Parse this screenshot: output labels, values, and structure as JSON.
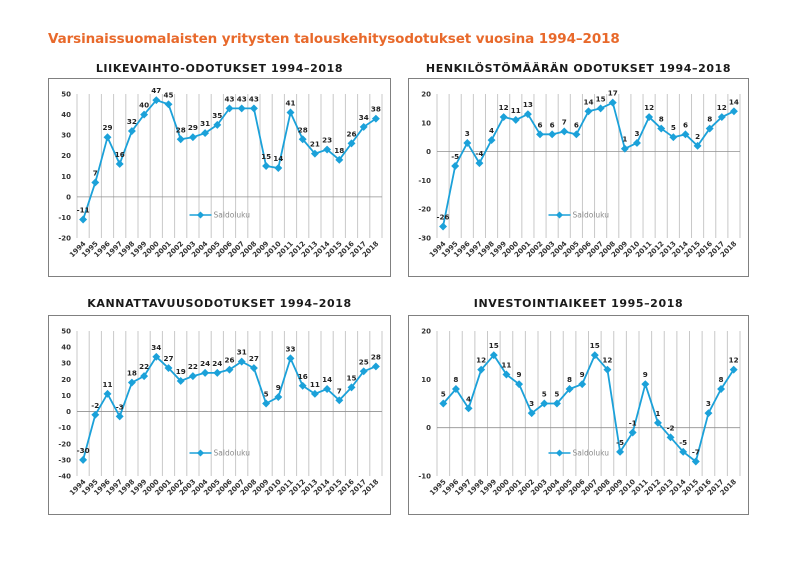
{
  "page": {
    "title": "Varsinaissuomalaisten yritysten talouskehitysodotukset vuosina 1994–2018",
    "colors": {
      "title": "#e8692b",
      "series": "#1ba1d9",
      "grid": "#c8c8c8",
      "zero_line": "#909090"
    }
  },
  "chart_data": [
    {
      "type": "line",
      "title": "LIIKEVAIHTO-ODOTUKSET 1994–2018",
      "xlabel": "",
      "ylabel": "",
      "x": [
        "1994",
        "1995",
        "1996",
        "1997",
        "1998",
        "1999",
        "2000",
        "2001",
        "2002",
        "2003",
        "2004",
        "2005",
        "2006",
        "2007",
        "2008",
        "2009",
        "2010",
        "2011",
        "2012",
        "2013",
        "2014",
        "2015",
        "2016",
        "2017",
        "2018"
      ],
      "series": [
        {
          "name": "Saldoluku",
          "values": [
            -11,
            7,
            29,
            16,
            32,
            40,
            47,
            45,
            28,
            29,
            31,
            35,
            43,
            43,
            43,
            15,
            14,
            41,
            28,
            21,
            23,
            18,
            26,
            34,
            38
          ]
        }
      ],
      "ylim": [
        -20,
        50
      ],
      "yticks": [
        -20,
        -10,
        0,
        10,
        20,
        30,
        40,
        50
      ],
      "grid": "vertical",
      "legend": "lower-center",
      "data_labels": true
    },
    {
      "type": "line",
      "title": "HENKILÖSTÖMÄÄRÄN ODOTUKSET 1994–2018",
      "xlabel": "",
      "ylabel": "",
      "x": [
        "1994",
        "1995",
        "1996",
        "1997",
        "1998",
        "1999",
        "2000",
        "2001",
        "2002",
        "2003",
        "2004",
        "2005",
        "2006",
        "2007",
        "2008",
        "2009",
        "2010",
        "2011",
        "2012",
        "2013",
        "2014",
        "2015",
        "2016",
        "2017",
        "2018"
      ],
      "series": [
        {
          "name": "Saldoluku",
          "values": [
            -26,
            -5,
            3,
            -4,
            4,
            12,
            11,
            13,
            6,
            6,
            7,
            6,
            14,
            15,
            17,
            1,
            3,
            12,
            8,
            5,
            6,
            2,
            8,
            12,
            14
          ]
        }
      ],
      "ylim": [
        -30,
        20
      ],
      "yticks": [
        -30,
        -20,
        -10,
        0,
        10,
        20
      ],
      "grid": "vertical",
      "legend": "lower-center",
      "data_labels": true
    },
    {
      "type": "line",
      "title": "KANNATTAVUUSODOTUKSET 1994–2018",
      "xlabel": "",
      "ylabel": "",
      "x": [
        "1994",
        "1995",
        "1996",
        "1997",
        "1998",
        "1999",
        "2000",
        "2001",
        "2002",
        "2003",
        "2004",
        "2005",
        "2006",
        "2007",
        "2008",
        "2009",
        "2010",
        "2011",
        "2012",
        "2013",
        "2014",
        "2015",
        "2016",
        "2017",
        "2018"
      ],
      "series": [
        {
          "name": "Saldoluku",
          "values": [
            -30,
            -2,
            11,
            -3,
            18,
            22,
            34,
            27,
            19,
            22,
            24,
            24,
            26,
            31,
            27,
            5,
            9,
            33,
            16,
            11,
            14,
            7,
            15,
            25,
            28
          ]
        }
      ],
      "ylim": [
        -40,
        50
      ],
      "yticks": [
        -40,
        -30,
        -20,
        -10,
        0,
        10,
        20,
        30,
        40,
        50
      ],
      "grid": "vertical",
      "legend": "lower-center",
      "data_labels": true
    },
    {
      "type": "line",
      "title": "INVESTOINTIAIKEET 1995–2018",
      "xlabel": "",
      "ylabel": "",
      "x": [
        "1995",
        "1996",
        "1997",
        "1998",
        "1999",
        "2000",
        "2001",
        "2002",
        "2003",
        "2004",
        "2005",
        "2006",
        "2007",
        "2008",
        "2009",
        "2010",
        "2011",
        "2012",
        "2013",
        "2014",
        "2015",
        "2016",
        "2017",
        "2018"
      ],
      "series": [
        {
          "name": "Saldoluku",
          "values": [
            5,
            8,
            4,
            12,
            15,
            11,
            9,
            3,
            5,
            5,
            8,
            9,
            15,
            12,
            -5,
            -1,
            9,
            1,
            -2,
            -5,
            -7,
            3,
            8,
            12
          ]
        }
      ],
      "ylim": [
        -10,
        20
      ],
      "yticks": [
        -10,
        0,
        10,
        20
      ],
      "grid": "vertical",
      "legend": "lower-center",
      "data_labels": true
    }
  ]
}
